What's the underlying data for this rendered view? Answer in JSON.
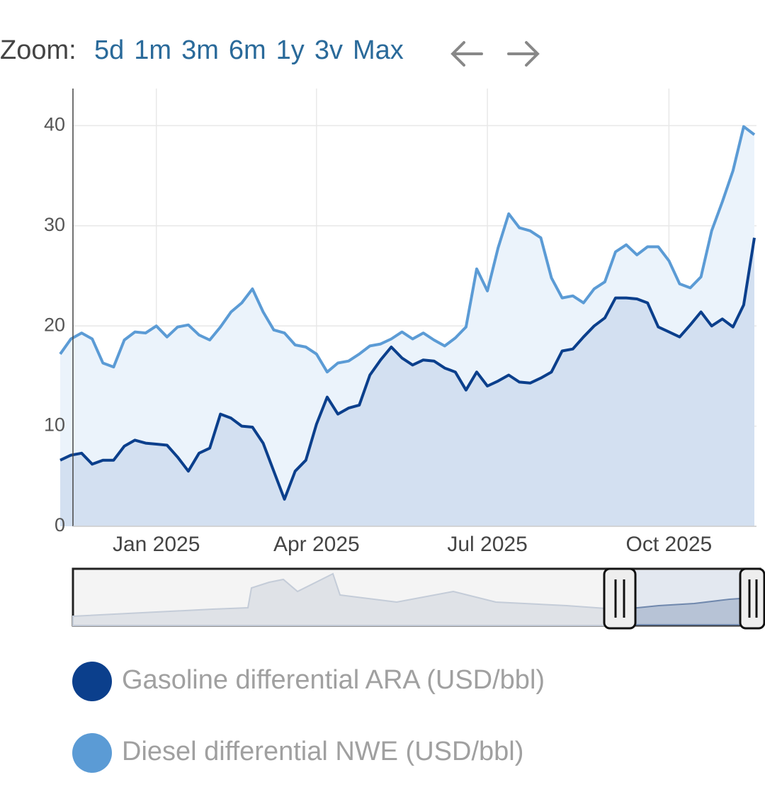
{
  "range_selector": {
    "label": "Zoom:",
    "buttons": [
      "5d",
      "1m",
      "3m",
      "6m",
      "1y",
      "3v",
      "Max"
    ]
  },
  "chart_data": {
    "type": "line",
    "categories": [
      null,
      null,
      null,
      null,
      null,
      null,
      null,
      null,
      null,
      "Jan 2025",
      null,
      null,
      null,
      null,
      null,
      null,
      null,
      null,
      null,
      null,
      null,
      null,
      null,
      null,
      "Apr 2025",
      null,
      null,
      null,
      null,
      null,
      null,
      null,
      null,
      null,
      null,
      null,
      null,
      null,
      null,
      null,
      "Jul 2025",
      null,
      null,
      null,
      null,
      null,
      null,
      null,
      null,
      null,
      null,
      null,
      null,
      null,
      null,
      null,
      null,
      "Oct 2025",
      null,
      null,
      null,
      null,
      null,
      null,
      null,
      null
    ],
    "series": [
      {
        "name": "Gasoline differential ARA (USD/bbl)",
        "color": "#0b3f8c",
        "fill": "#d3e0f1",
        "values": [
          6.6,
          7.1,
          7.3,
          6.2,
          6.6,
          6.6,
          8,
          8.6,
          8.3,
          8.2,
          8.1,
          6.9,
          5.5,
          7.3,
          7.8,
          11.2,
          10.8,
          10,
          9.9,
          8.3,
          5.5,
          2.7,
          5.5,
          6.6,
          10.2,
          12.9,
          11.2,
          11.8,
          12.1,
          15.1,
          16.6,
          17.9,
          16.8,
          16.1,
          16.6,
          16.5,
          15.8,
          15.4,
          13.6,
          15.4,
          14,
          14.5,
          15.1,
          14.4,
          14.3,
          14.8,
          15.4,
          17.5,
          17.7,
          18.9,
          20,
          20.8,
          22.8,
          22.8,
          22.7,
          22.3,
          19.9,
          19.4,
          18.9,
          20.1,
          21.4,
          20,
          20.7,
          19.9,
          22.1,
          28.8
        ]
      },
      {
        "name": "Diesel differential NWE (USD/bbl)",
        "color": "#5b9bd5",
        "fill": "#ebf3fb",
        "values": [
          17.2,
          18.7,
          19.3,
          18.7,
          16.3,
          15.9,
          18.6,
          19.4,
          19.3,
          20,
          18.9,
          19.9,
          20.1,
          19.1,
          18.6,
          19.9,
          21.4,
          22.3,
          23.7,
          21.4,
          19.6,
          19.3,
          18.1,
          17.9,
          17.2,
          15.4,
          16.3,
          16.5,
          17.2,
          18,
          18.2,
          18.7,
          19.4,
          18.7,
          19.3,
          18.6,
          18,
          18.8,
          19.9,
          25.7,
          23.5,
          27.8,
          31.2,
          29.8,
          29.5,
          28.8,
          24.8,
          22.8,
          23,
          22.3,
          23.7,
          24.4,
          27.4,
          28.1,
          27.1,
          27.9,
          27.9,
          26.5,
          24.2,
          23.8,
          24.9,
          29.5,
          32.4,
          35.5,
          39.9,
          39.1
        ]
      }
    ],
    "ylim": [
      0,
      43.7
    ],
    "yticks": [
      0,
      10,
      20,
      30,
      40
    ],
    "grid": true
  }
}
